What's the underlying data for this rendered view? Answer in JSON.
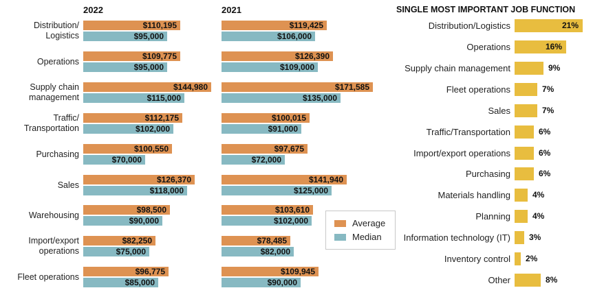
{
  "colors": {
    "average": "#DE9252",
    "median": "#87B9C2",
    "percent_bar": "#E8BD3F",
    "text": "#1a1a1a",
    "legend_border": "#c8c8c8"
  },
  "chart_data": [
    {
      "type": "bar",
      "orientation": "horizontal",
      "group_headers": [
        "2022",
        "2021"
      ],
      "value_prefix": "$",
      "legend": [
        "Average",
        "Median"
      ],
      "legend_position": "right-middle",
      "categories": [
        "Distribution/Logistics",
        "Operations",
        "Supply chain management",
        "Traffic/Transportation",
        "Purchasing",
        "Sales",
        "Warehousing",
        "Import/export operations",
        "Fleet operations"
      ],
      "category_label_lines": [
        [
          "Distribution/",
          "Logistics"
        ],
        [
          "Operations"
        ],
        [
          "Supply chain",
          "management"
        ],
        [
          "Traffic/",
          "Transportation"
        ],
        [
          "Purchasing"
        ],
        [
          "Sales"
        ],
        [
          "Warehousing"
        ],
        [
          "Import/export",
          "operations"
        ],
        [
          "Fleet operations"
        ]
      ],
      "series": [
        {
          "name": "2022 Average",
          "color_key": "average",
          "values": [
            110195,
            109775,
            144980,
            112175,
            100550,
            126370,
            98500,
            82250,
            96775
          ]
        },
        {
          "name": "2022 Median",
          "color_key": "median",
          "values": [
            95000,
            95000,
            115000,
            102000,
            70000,
            118000,
            90000,
            75000,
            85000
          ]
        },
        {
          "name": "2021 Average",
          "color_key": "average",
          "values": [
            119425,
            126390,
            171585,
            100015,
            97675,
            141940,
            103610,
            78485,
            109945
          ]
        },
        {
          "name": "2021 Median",
          "color_key": "median",
          "values": [
            106000,
            109000,
            135000,
            91000,
            72000,
            125000,
            102000,
            82000,
            90000
          ]
        }
      ]
    },
    {
      "type": "bar",
      "orientation": "horizontal",
      "title": "SINGLE MOST IMPORTANT JOB FUNCTION",
      "unit": "%",
      "categories": [
        "Distribution/Logistics",
        "Operations",
        "Supply chain management",
        "Fleet operations",
        "Sales",
        "Traffic/Transportation",
        "Import/export operations",
        "Purchasing",
        "Materials handling",
        "Planning",
        "Information technology (IT)",
        "Inventory control",
        "Other"
      ],
      "values": [
        21,
        16,
        9,
        7,
        7,
        6,
        6,
        6,
        4,
        4,
        3,
        2,
        8
      ]
    }
  ]
}
